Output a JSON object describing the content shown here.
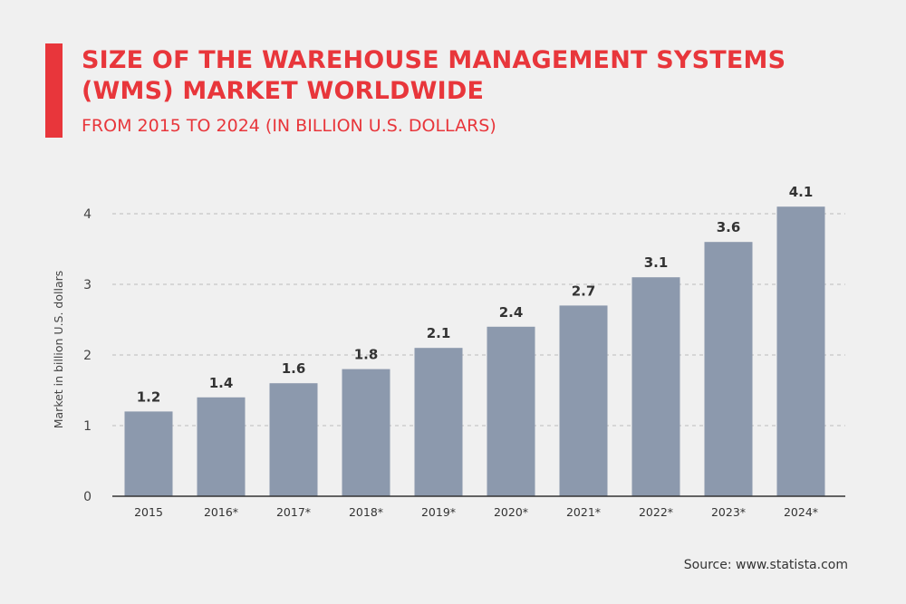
{
  "header": {
    "title": "SIZE OF THE WAREHOUSE MANAGEMENT SYSTEMS (WMS) MARKET WORLDWIDE",
    "subtitle": "FROM 2015 TO 2024 (IN BILLION U.S. DOLLARS)"
  },
  "footer": {
    "source": "Source: www.statista.com"
  },
  "colors": {
    "accent": "#e8363b",
    "bar": "#8c99ad",
    "background": "#f0f0f0",
    "grid": "#bbbbbb",
    "axis_text": "#444444",
    "label_text": "#333333"
  },
  "chart_data": {
    "type": "bar",
    "categories": [
      "2015",
      "2016*",
      "2017*",
      "2018*",
      "2019*",
      "2020*",
      "2021*",
      "2022*",
      "2023*",
      "2024*"
    ],
    "values": [
      1.2,
      1.4,
      1.6,
      1.8,
      2.1,
      2.4,
      2.7,
      3.1,
      3.6,
      4.1
    ],
    "title": "SIZE OF THE WAREHOUSE MANAGEMENT SYSTEMS (WMS) MARKET WORLDWIDE",
    "subtitle": "FROM 2015 TO 2024 (IN BILLION U.S. DOLLARS)",
    "xlabel": "",
    "ylabel": "Market in billion U.S. dollars",
    "ylim": [
      0,
      4
    ],
    "yticks": [
      0,
      1,
      2,
      3,
      4
    ],
    "grid": true,
    "legend": "none",
    "data_labels": true
  }
}
